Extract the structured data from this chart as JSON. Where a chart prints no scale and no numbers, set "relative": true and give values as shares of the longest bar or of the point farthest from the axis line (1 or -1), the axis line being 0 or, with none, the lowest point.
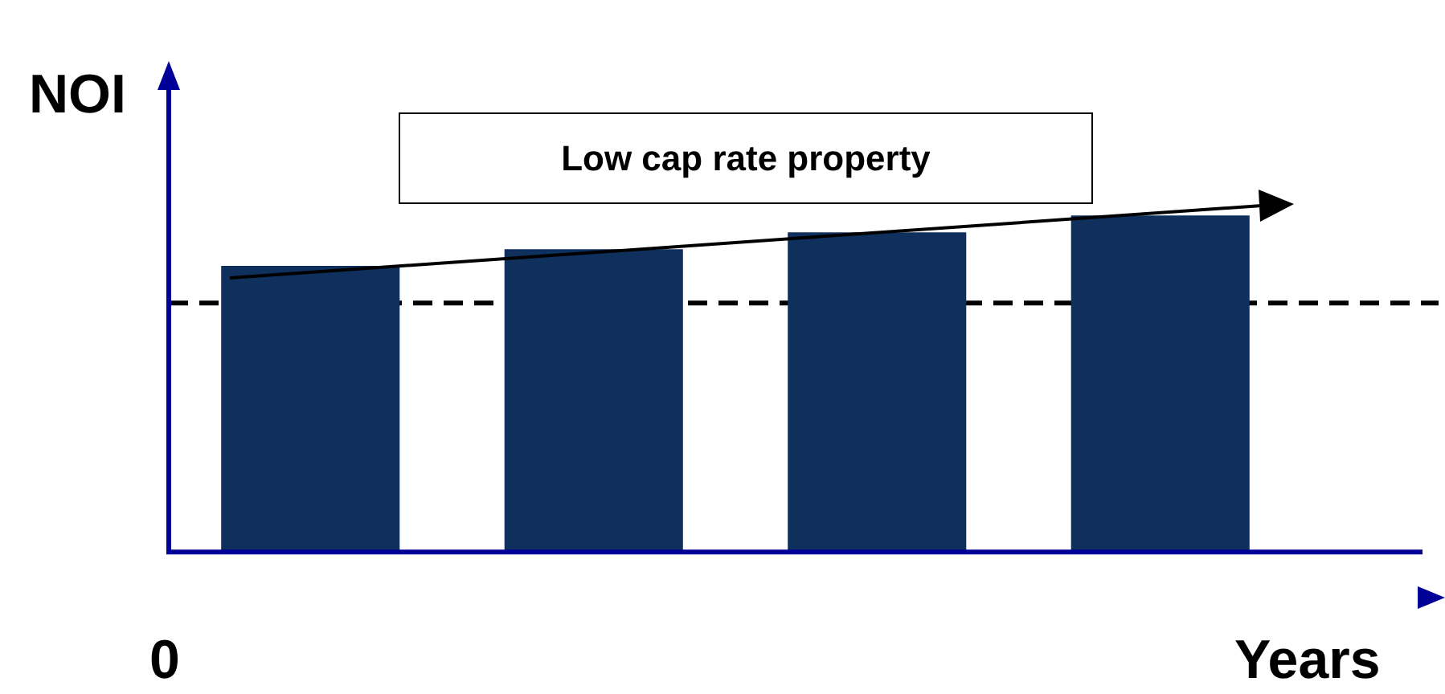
{
  "chart_data": {
    "type": "bar",
    "title": "Low cap rate property",
    "xlabel": "Years",
    "ylabel": "NOI",
    "annotations": [
      "0"
    ],
    "relative": true,
    "categories": [
      null,
      null,
      null,
      null
    ],
    "values": [
      0.85,
      0.9,
      0.95,
      1
    ],
    "color": "#0f2f5c",
    "grid": false,
    "legend": false,
    "ref_lines": [
      {
        "axis": "y",
        "value": 0.74,
        "color": "#000000",
        "line_style": "dashed"
      }
    ]
  }
}
